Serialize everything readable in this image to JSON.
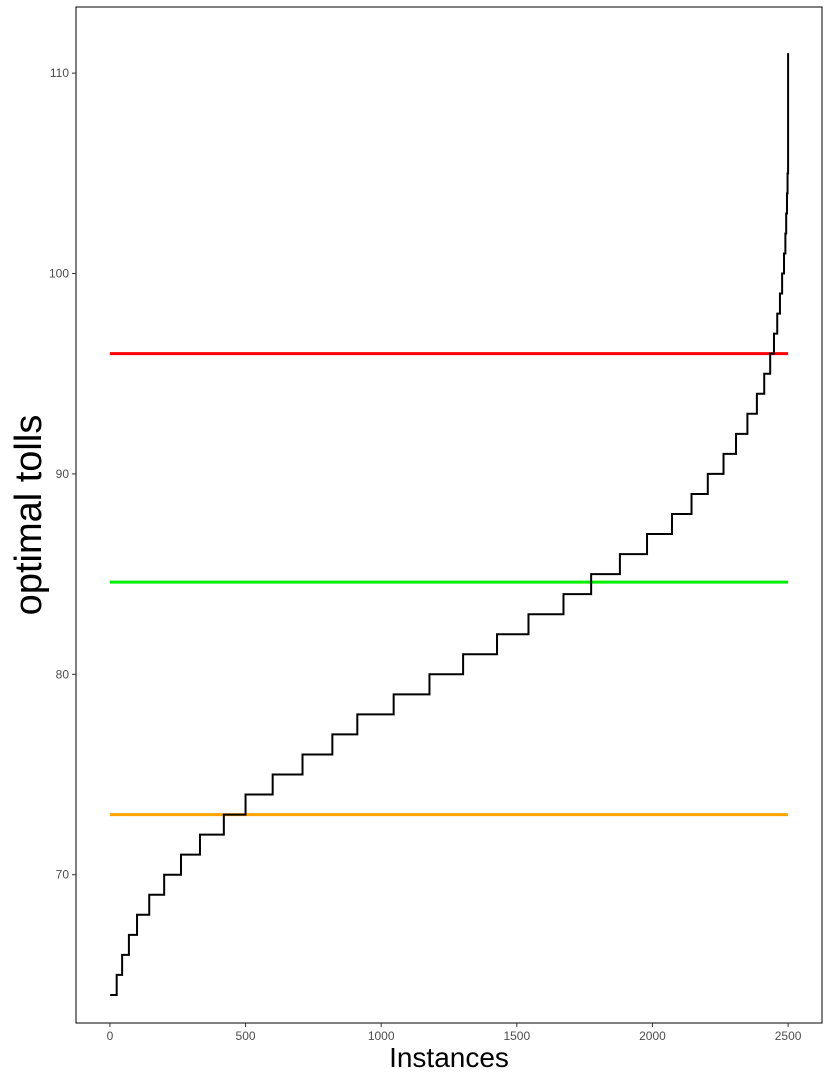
{
  "chart_data": {
    "type": "line",
    "title": "",
    "xlabel": "Instances",
    "ylabel": "optimal tolls",
    "xlim": [
      -125,
      2625
    ],
    "ylim": [
      62.6,
      113.3
    ],
    "x_ticks": [
      0,
      500,
      1000,
      1500,
      2000,
      2500
    ],
    "y_ticks": [
      70,
      80,
      90,
      100,
      110
    ],
    "grid": false,
    "legend": "none",
    "series": [
      {
        "step": true,
        "color": "#000000",
        "x": [
          1,
          25,
          45,
          70,
          100,
          145,
          200,
          262,
          332,
          420,
          500,
          600,
          710,
          820,
          912,
          1046,
          1178,
          1302,
          1427,
          1543,
          1672,
          1774,
          1880,
          1980,
          2072,
          2144,
          2204,
          2262,
          2308,
          2350,
          2385,
          2412,
          2434,
          2448,
          2460,
          2470,
          2478,
          2485,
          2490,
          2493,
          2496,
          2498,
          2500
        ],
        "y": [
          64,
          65,
          66,
          67,
          68,
          69,
          70,
          71,
          72,
          73,
          74,
          75,
          76,
          77,
          78,
          79,
          80,
          81,
          82,
          83,
          84,
          85,
          86,
          87,
          88,
          89,
          90,
          91,
          92,
          93,
          94,
          95,
          96,
          97,
          98,
          99,
          100,
          101,
          102,
          103,
          104,
          105,
          111
        ]
      }
    ],
    "hlines": [
      {
        "y": 96,
        "x": [
          0,
          2500
        ],
        "color": "#ff0000"
      },
      {
        "y": 84.6,
        "x": [
          0,
          2500
        ],
        "color": "#00ee00"
      },
      {
        "y": 73,
        "x": [
          0,
          2500
        ],
        "color": "#ffa500"
      }
    ]
  }
}
